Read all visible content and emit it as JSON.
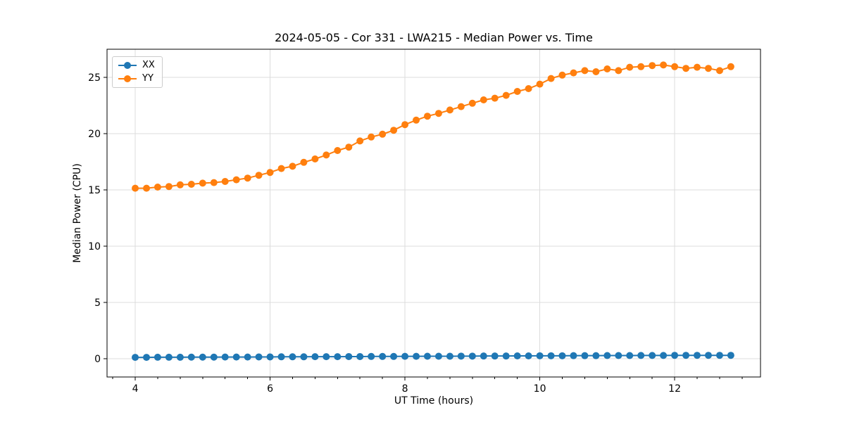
{
  "figure": {
    "background": "#ffffff"
  },
  "chart_data": {
    "type": "line",
    "title": "2024-05-05 - Cor 331 - LWA215 - Median Power vs. Time",
    "xlabel": "UT Time (hours)",
    "ylabel": "Median Power (CPU)",
    "xlim": [
      3.582,
      13.273
    ],
    "ylim": [
      -1.625,
      27.5
    ],
    "grid": true,
    "legend_position": "upper-left",
    "x_major_ticks": [
      4,
      6,
      8,
      10,
      12
    ],
    "x_tick_labels": [
      "4",
      "6",
      "8",
      "10",
      "12"
    ],
    "x_minor_step": 0.3333,
    "y_major_ticks": [
      0,
      5,
      10,
      15,
      20,
      25
    ],
    "y_tick_labels": [
      "0",
      "5",
      "10",
      "15",
      "20",
      "25"
    ],
    "x": [
      4.0,
      4.167,
      4.333,
      4.5,
      4.667,
      4.833,
      5.0,
      5.167,
      5.333,
      5.5,
      5.667,
      5.833,
      6.0,
      6.167,
      6.333,
      6.5,
      6.667,
      6.833,
      7.0,
      7.167,
      7.333,
      7.5,
      7.667,
      7.833,
      8.0,
      8.167,
      8.333,
      8.5,
      8.667,
      8.833,
      9.0,
      9.167,
      9.333,
      9.5,
      9.667,
      9.833,
      10.0,
      10.167,
      10.333,
      10.5,
      10.667,
      10.833,
      11.0,
      11.167,
      11.333,
      11.5,
      11.667,
      11.833,
      12.0,
      12.167,
      12.333,
      12.5,
      12.667,
      12.833
    ],
    "series": [
      {
        "name": "XX",
        "color": "#1f77b4",
        "values": [
          0.12,
          0.12,
          0.13,
          0.13,
          0.13,
          0.14,
          0.14,
          0.14,
          0.15,
          0.15,
          0.15,
          0.16,
          0.16,
          0.17,
          0.17,
          0.17,
          0.18,
          0.18,
          0.18,
          0.19,
          0.19,
          0.2,
          0.2,
          0.2,
          0.21,
          0.21,
          0.22,
          0.22,
          0.22,
          0.23,
          0.23,
          0.24,
          0.24,
          0.24,
          0.25,
          0.25,
          0.26,
          0.26,
          0.26,
          0.27,
          0.27,
          0.27,
          0.28,
          0.28,
          0.28,
          0.29,
          0.29,
          0.29,
          0.3,
          0.3,
          0.3,
          0.3,
          0.3,
          0.3
        ]
      },
      {
        "name": "YY",
        "color": "#ff7f0e",
        "values": [
          15.15,
          15.15,
          15.25,
          15.3,
          15.45,
          15.5,
          15.6,
          15.65,
          15.75,
          15.9,
          16.05,
          16.3,
          16.55,
          16.9,
          17.1,
          17.45,
          17.75,
          18.1,
          18.5,
          18.8,
          19.35,
          19.7,
          19.95,
          20.3,
          20.8,
          21.2,
          21.55,
          21.8,
          22.1,
          22.4,
          22.7,
          23.0,
          23.15,
          23.4,
          23.75,
          24.0,
          24.4,
          24.9,
          25.2,
          25.4,
          25.6,
          25.5,
          25.75,
          25.6,
          25.9,
          25.95,
          26.05,
          26.1,
          25.95,
          25.8,
          25.9,
          25.8,
          25.6,
          25.95
        ]
      }
    ],
    "style": {
      "grid_color": "#dcdcdc",
      "spine_color": "#000000",
      "text_color": "#000000"
    }
  }
}
